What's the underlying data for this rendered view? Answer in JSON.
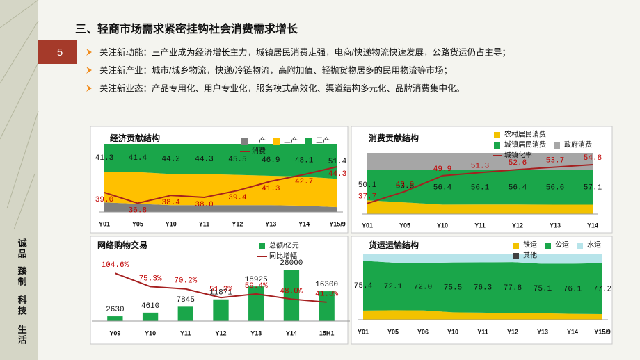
{
  "slide": {
    "page_number": 5,
    "title": "三、轻商市场需求紧密挂钩社会消费需求增长",
    "bullets": [
      "关注新动能：三产业成为经济增长主力，城镇居民消费走强，电商/快递物流快速发展，公路货运仍占主导；",
      "关注新产业：城市/城乡物流，快递/冷链物流，高附加值、轻抛货物居多的民用物流等市场；",
      "关注新业态：产品专用化、用户专业化，服务模式高效化、渠道结构多元化、品牌消费集中化。"
    ],
    "side_text": [
      "诚品",
      "臻制",
      "科技",
      "生活"
    ]
  },
  "chart_data": [
    {
      "type": "stacked_area",
      "title": "经济贡献结构",
      "categories": [
        "Y01",
        "Y05",
        "Y10",
        "Y11",
        "Y12",
        "Y13",
        "Y14",
        "Y15/9"
      ],
      "ylim": [
        0,
        100
      ],
      "y2lim": [
        35,
        49
      ],
      "series": [
        {
          "name": "一产",
          "color": "#808080",
          "values": [
            14,
            12,
            10,
            10,
            10,
            10,
            9,
            7
          ]
        },
        {
          "name": "二产",
          "color": "#ffc000",
          "values": [
            44.7,
            46.6,
            45.8,
            45.7,
            44.5,
            43.1,
            42.9,
            41.6
          ]
        },
        {
          "name": "三产",
          "color": "#1aa64a",
          "values": [
            41.3,
            41.4,
            44.2,
            44.3,
            45.5,
            46.9,
            48.1,
            51.4
          ],
          "data_labels": true
        },
        {
          "name": "消费",
          "color": "#a52020",
          "axis": "y2",
          "values": [
            39.0,
            36.8,
            38.4,
            38.0,
            39.4,
            41.3,
            42.7,
            44.3
          ],
          "value_labels": [
            "39.0",
            "36.8",
            "38.4",
            "38.0",
            "39.4",
            "41.3",
            "42.7",
            "44.3"
          ]
        }
      ]
    },
    {
      "type": "stacked_area",
      "title": "消费贡献结构",
      "categories": [
        "Y01",
        "Y05",
        "Y10",
        "Y11",
        "Y12",
        "Y13",
        "Y14"
      ],
      "ylim": [
        0,
        100
      ],
      "y2lim": [
        33,
        60
      ],
      "series": [
        {
          "name": "农村居民消费",
          "color": "#f2c200",
          "values": [
            22.4,
            19.0,
            15.5,
            15.6,
            15.6,
            15.3,
            15.3
          ]
        },
        {
          "name": "城镇居民消费",
          "color": "#1aa64a",
          "values": [
            50.1,
            53.5,
            56.4,
            56.1,
            56.4,
            56.6,
            57.1
          ],
          "data_labels": true
        },
        {
          "name": "政府消费",
          "color": "#a6a6a6",
          "values": [
            27.5,
            27.5,
            28.1,
            28.3,
            28.0,
            28.1,
            27.6
          ]
        },
        {
          "name": "城镇化率",
          "color": "#a52020",
          "axis": "y2",
          "values": [
            37.7,
            43.0,
            49.9,
            51.3,
            52.6,
            53.7,
            54.8
          ],
          "value_labels": [
            "37.7",
            "43.0",
            "49.9",
            "51.3",
            "52.6",
            "53.7",
            "54.8"
          ]
        }
      ]
    },
    {
      "type": "bar",
      "title": "网络购物交易",
      "categories": [
        "Y09",
        "Y10",
        "Y11",
        "Y12",
        "Y13",
        "Y14",
        "15H1"
      ],
      "ylim": [
        0,
        30000
      ],
      "y2lim": [
        0,
        120
      ],
      "series": [
        {
          "name": "总额/亿元",
          "color": "#1aa64a",
          "values": [
            2630,
            4610,
            7845,
            11871,
            18925,
            28000,
            16300
          ],
          "data_labels": true
        },
        {
          "name": "同比增幅",
          "color": "#a52020",
          "axis": "y2",
          "values": [
            104.6,
            75.3,
            70.2,
            51.3,
            59.4,
            48.0,
            41.3
          ],
          "value_labels": [
            "104.6%",
            "75.3%",
            "70.2%",
            "51.3%",
            "59.4%",
            "48.0%",
            "41.3%"
          ]
        }
      ]
    },
    {
      "type": "stacked_area",
      "title": "货运运输结构",
      "categories": [
        "Y01",
        "Y05",
        "Y06",
        "Y10",
        "Y11",
        "Y12",
        "Y13",
        "Y14",
        "Y15/9"
      ],
      "ylim": [
        0,
        100
      ],
      "series": [
        {
          "name": "铁运",
          "color": "#f2c200",
          "values": [
            13.8,
            14.4,
            14.1,
            11.2,
            10.6,
            9.5,
            9.7,
            8.8,
            8.4
          ]
        },
        {
          "name": "公运",
          "color": "#1aa64a",
          "values": [
            75.4,
            72.1,
            72.0,
            75.5,
            76.3,
            77.8,
            75.1,
            76.1,
            77.2
          ],
          "value_labels": [
            "75.4",
            "72.1",
            "72.0",
            "75.5",
            "76.3",
            "77.8",
            "75.1",
            "76.1",
            "77.2"
          ]
        },
        {
          "name": "水运",
          "color": "#b7e4ea",
          "values": [
            10.6,
            13.3,
            13.7,
            13.1,
            12.9,
            12.5,
            14.9,
            14.9,
            14.2
          ]
        },
        {
          "name": "其他",
          "color": "#404040",
          "values": [
            0.2,
            0.2,
            0.2,
            0.2,
            0.2,
            0.2,
            0.3,
            0.2,
            0.2
          ]
        }
      ]
    }
  ]
}
